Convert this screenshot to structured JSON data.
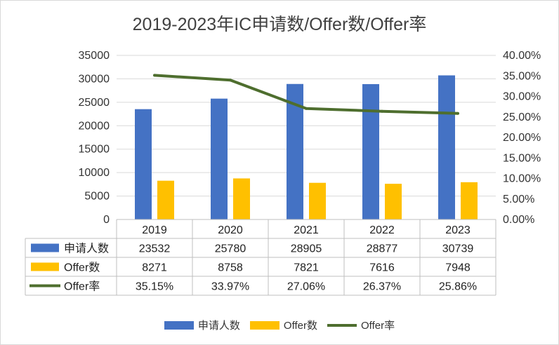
{
  "chart_data": {
    "type": "bar+line+table",
    "title": "2019-2023年IC申请数/Offer数/Offer率",
    "categories": [
      "2019",
      "2020",
      "2021",
      "2022",
      "2023"
    ],
    "series": [
      {
        "name": "申请人数",
        "type": "bar",
        "axis": "left",
        "color": "#4472C4",
        "values": [
          23532,
          25780,
          28905,
          28877,
          30739
        ],
        "labels": [
          "23532",
          "25780",
          "28905",
          "28877",
          "30739"
        ]
      },
      {
        "name": "Offer数",
        "type": "bar",
        "axis": "left",
        "color": "#FFC000",
        "values": [
          8271,
          8758,
          7821,
          7616,
          7948
        ],
        "labels": [
          "8271",
          "8758",
          "7821",
          "7616",
          "7948"
        ]
      },
      {
        "name": "Offer率",
        "type": "line",
        "axis": "right",
        "color": "#4E6E2E",
        "values": [
          35.15,
          33.97,
          27.06,
          26.37,
          25.86
        ],
        "labels": [
          "35.15%",
          "33.97%",
          "27.06%",
          "26.37%",
          "25.86%"
        ]
      }
    ],
    "y_left": {
      "min": 0,
      "max": 35000,
      "step": 5000,
      "ticks": [
        "0",
        "5000",
        "10000",
        "15000",
        "20000",
        "25000",
        "30000",
        "35000"
      ]
    },
    "y_right": {
      "min": 0,
      "max": 40,
      "step": 5,
      "ticks": [
        "0.00%",
        "5.00%",
        "10.00%",
        "15.00%",
        "20.00%",
        "25.00%",
        "30.00%",
        "35.00%",
        "40.00%"
      ]
    },
    "grid": true,
    "legend_position": "bottom"
  }
}
